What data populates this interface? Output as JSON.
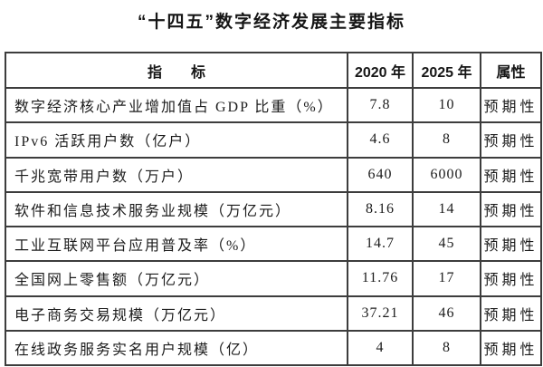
{
  "title": "“十四五”数字经济发展主要指标",
  "table": {
    "headers": [
      "指　　标",
      "2020 年",
      "2025 年",
      "属性"
    ],
    "rows": [
      {
        "indicator": "数字经济核心产业增加值占 GDP 比重（%）",
        "y2020": "7.8",
        "y2025": "10",
        "attribute": "预期性"
      },
      {
        "indicator": "IPv6 活跃用户数（亿户）",
        "y2020": "4.6",
        "y2025": "8",
        "attribute": "预期性"
      },
      {
        "indicator": "千兆宽带用户数（万户）",
        "y2020": "640",
        "y2025": "6000",
        "attribute": "预期性"
      },
      {
        "indicator": "软件和信息技术服务业规模（万亿元）",
        "y2020": "8.16",
        "y2025": "14",
        "attribute": "预期性"
      },
      {
        "indicator": "工业互联网平台应用普及率（%）",
        "y2020": "14.7",
        "y2025": "45",
        "attribute": "预期性"
      },
      {
        "indicator": "全国网上零售额（万亿元）",
        "y2020": "11.76",
        "y2025": "17",
        "attribute": "预期性"
      },
      {
        "indicator": "电子商务交易规模（万亿元）",
        "y2020": "37.21",
        "y2025": "46",
        "attribute": "预期性"
      },
      {
        "indicator": "在线政务服务实名用户规模（亿）",
        "y2020": "4",
        "y2025": "8",
        "attribute": "预期性"
      }
    ]
  },
  "colors": {
    "border": "#3d3d3d",
    "text": "#1c1c1c",
    "background": "#ffffff"
  }
}
